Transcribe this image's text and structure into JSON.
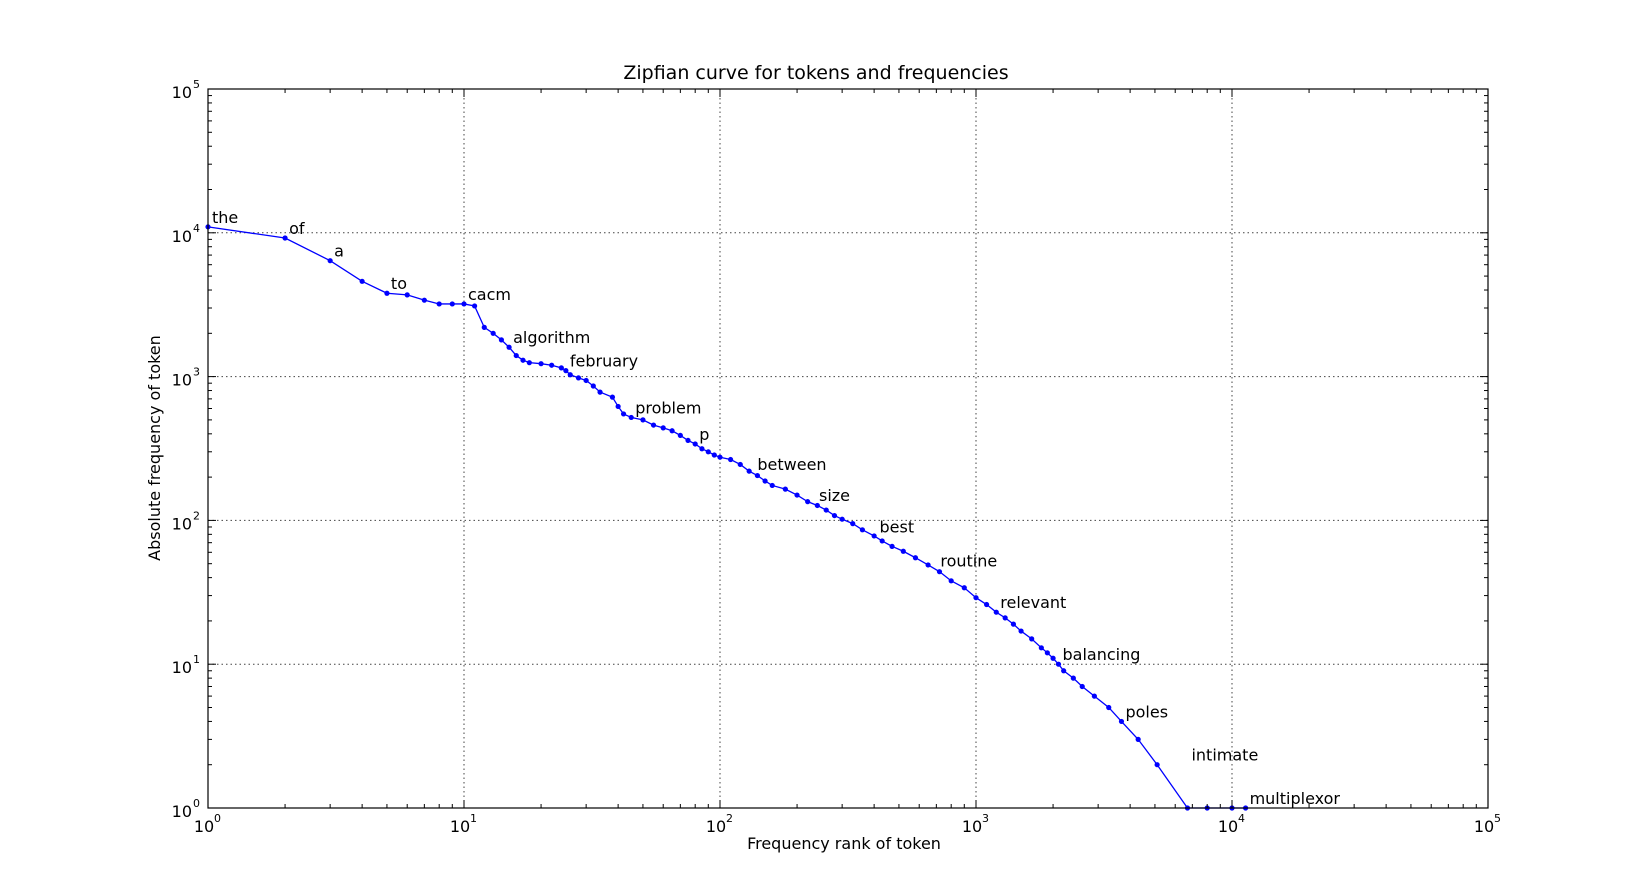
{
  "chart_data": {
    "type": "line",
    "title": "Zipfian curve for tokens and frequencies",
    "xlabel": "Frequency rank of token",
    "ylabel": "Absolute frequency of token",
    "xscale": "log",
    "yscale": "log",
    "xlim": [
      1,
      100000
    ],
    "ylim": [
      1,
      100000
    ],
    "grid": true,
    "x_ticks": [
      {
        "base": "10",
        "exp": "0",
        "value": 1
      },
      {
        "base": "10",
        "exp": "1",
        "value": 10
      },
      {
        "base": "10",
        "exp": "2",
        "value": 100
      },
      {
        "base": "10",
        "exp": "3",
        "value": 1000
      },
      {
        "base": "10",
        "exp": "4",
        "value": 10000
      },
      {
        "base": "10",
        "exp": "5",
        "value": 100000
      }
    ],
    "y_ticks": [
      {
        "base": "10",
        "exp": "0",
        "value": 1
      },
      {
        "base": "10",
        "exp": "1",
        "value": 10
      },
      {
        "base": "10",
        "exp": "2",
        "value": 100
      },
      {
        "base": "10",
        "exp": "3",
        "value": 1000
      },
      {
        "base": "10",
        "exp": "4",
        "value": 10000
      },
      {
        "base": "10",
        "exp": "5",
        "value": 100000
      }
    ],
    "series_color": "#0000ff",
    "series": [
      {
        "points": [
          [
            1,
            11000
          ],
          [
            2,
            9200
          ],
          [
            3,
            6400
          ],
          [
            4,
            4600
          ],
          [
            5,
            3800
          ],
          [
            6,
            3700
          ],
          [
            7,
            3400
          ],
          [
            8,
            3200
          ],
          [
            9,
            3200
          ],
          [
            10,
            3200
          ],
          [
            11,
            3100
          ],
          [
            12,
            2200
          ],
          [
            13,
            2000
          ],
          [
            14,
            1800
          ],
          [
            15,
            1600
          ],
          [
            16,
            1400
          ],
          [
            17,
            1300
          ],
          [
            18,
            1250
          ],
          [
            20,
            1230
          ],
          [
            22,
            1200
          ],
          [
            24,
            1150
          ],
          [
            25,
            1100
          ],
          [
            26,
            1030
          ],
          [
            28,
            980
          ],
          [
            30,
            940
          ],
          [
            32,
            860
          ],
          [
            34,
            780
          ],
          [
            38,
            720
          ],
          [
            40,
            620
          ],
          [
            42,
            550
          ],
          [
            45,
            520
          ],
          [
            50,
            500
          ],
          [
            55,
            460
          ],
          [
            60,
            440
          ],
          [
            65,
            420
          ],
          [
            70,
            390
          ],
          [
            75,
            360
          ],
          [
            80,
            340
          ],
          [
            85,
            315
          ],
          [
            90,
            300
          ],
          [
            95,
            285
          ],
          [
            100,
            275
          ],
          [
            110,
            265
          ],
          [
            120,
            245
          ],
          [
            130,
            220
          ],
          [
            140,
            205
          ],
          [
            150,
            188
          ],
          [
            160,
            175
          ],
          [
            180,
            165
          ],
          [
            200,
            150
          ],
          [
            220,
            135
          ],
          [
            240,
            127
          ],
          [
            260,
            118
          ],
          [
            280,
            108
          ],
          [
            300,
            102
          ],
          [
            330,
            95
          ],
          [
            360,
            86
          ],
          [
            400,
            78
          ],
          [
            430,
            72
          ],
          [
            470,
            66
          ],
          [
            520,
            61
          ],
          [
            580,
            55
          ],
          [
            650,
            49
          ],
          [
            720,
            44
          ],
          [
            800,
            38
          ],
          [
            900,
            34
          ],
          [
            1000,
            29
          ],
          [
            1100,
            26
          ],
          [
            1200,
            23
          ],
          [
            1300,
            21
          ],
          [
            1400,
            19
          ],
          [
            1500,
            17
          ],
          [
            1650,
            15
          ],
          [
            1800,
            13
          ],
          [
            1900,
            12
          ],
          [
            2000,
            11
          ],
          [
            2100,
            10
          ],
          [
            2200,
            9
          ],
          [
            2400,
            8
          ],
          [
            2600,
            7
          ],
          [
            2900,
            6
          ],
          [
            3300,
            5
          ],
          [
            3700,
            4
          ],
          [
            4300,
            3
          ],
          [
            5100,
            2
          ],
          [
            6700,
            1
          ],
          [
            8000,
            1
          ],
          [
            10000,
            1
          ],
          [
            11300,
            1
          ]
        ]
      }
    ],
    "annotations": [
      {
        "text": "the",
        "x": 1,
        "y": 11000
      },
      {
        "text": "of",
        "x": 2,
        "y": 9200
      },
      {
        "text": "a",
        "x": 3,
        "y": 6400
      },
      {
        "text": "to",
        "x": 5,
        "y": 3800
      },
      {
        "text": "cacm",
        "x": 10,
        "y": 3200
      },
      {
        "text": "algorithm",
        "x": 15,
        "y": 1600
      },
      {
        "text": "february",
        "x": 25,
        "y": 1100
      },
      {
        "text": "problem",
        "x": 45,
        "y": 520
      },
      {
        "text": "p",
        "x": 80,
        "y": 340
      },
      {
        "text": "between",
        "x": 135,
        "y": 210
      },
      {
        "text": "size",
        "x": 235,
        "y": 128
      },
      {
        "text": "best",
        "x": 405,
        "y": 77
      },
      {
        "text": "routine",
        "x": 700,
        "y": 45
      },
      {
        "text": "relevant",
        "x": 1200,
        "y": 23
      },
      {
        "text": "balancing",
        "x": 2100,
        "y": 10
      },
      {
        "text": "poles",
        "x": 3700,
        "y": 4
      },
      {
        "text": "intimate",
        "x": 6700,
        "y": 2
      },
      {
        "text": "multiplexor",
        "x": 11300,
        "y": 1
      }
    ]
  }
}
